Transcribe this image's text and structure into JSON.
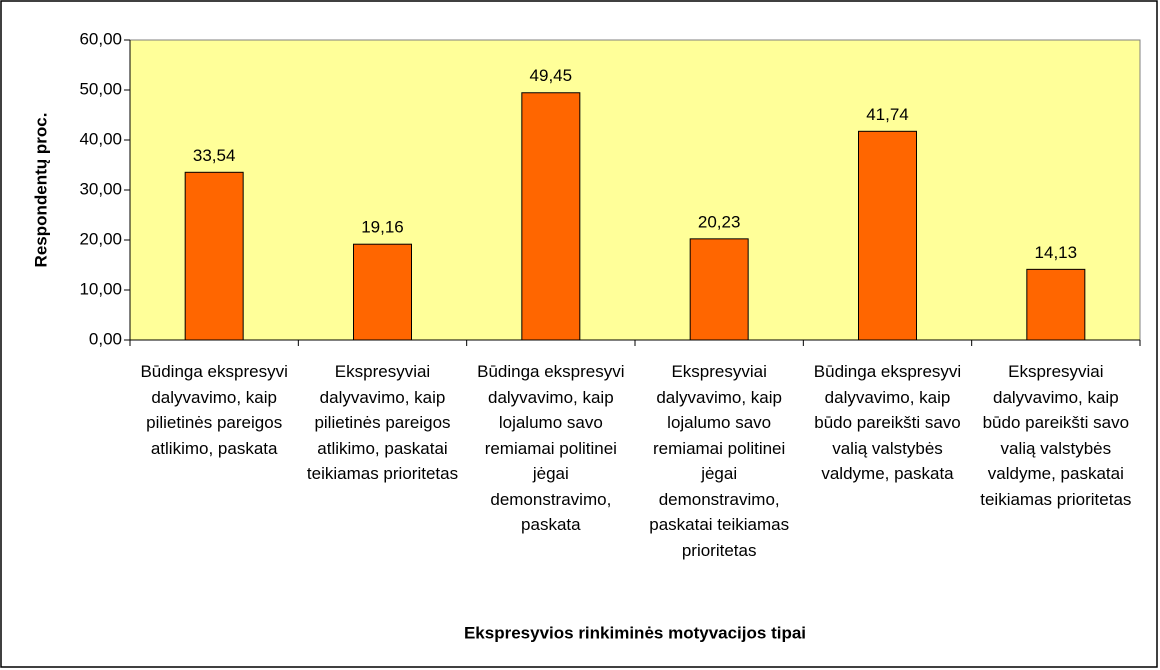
{
  "chart_data": {
    "type": "bar",
    "xlabel": "Ekspresyvios rinkiminės motyvacijos tipai",
    "ylabel": "Respondentų proc.",
    "categories": [
      "Būdinga ekspresyvi dalyvavimo, kaip pilietinės pareigos atlikimo, paskata",
      "Ekspresyviai dalyvavimo, kaip pilietinės pareigos atlikimo, paskatai teikiamas prioritetas",
      "Būdinga ekspresyvi dalyvavimo, kaip lojalumo savo remiamai politinei jėgai demonstravimo, paskata",
      "Ekspresyviai dalyvavimo, kaip lojalumo savo remiamai politinei jėgai demonstravimo, paskatai teikiamas prioritetas",
      "Būdinga ekspresyvi dalyvavimo, kaip būdo pareikšti savo valią valstybės valdyme, paskata",
      "Ekspresyviai dalyvavimo, kaip būdo pareikšti savo valią valstybės valdyme, paskatai teikiamas prioritetas"
    ],
    "values": [
      33.54,
      19.16,
      49.45,
      20.23,
      41.74,
      14.13
    ],
    "value_labels": [
      "33,54",
      "19,16",
      "49,45",
      "20,23",
      "41,74",
      "14,13"
    ],
    "color": "#ff6600",
    "ylim": [
      0,
      60
    ],
    "yticks": [
      {
        "value": 0,
        "label": "0,00"
      },
      {
        "value": 10,
        "label": "10,00"
      },
      {
        "value": 20,
        "label": "20,00"
      },
      {
        "value": 30,
        "label": "30,00"
      },
      {
        "value": 40,
        "label": "40,00"
      },
      {
        "value": 50,
        "label": "50,00"
      },
      {
        "value": 60,
        "label": "60,00"
      }
    ],
    "grid": false
  }
}
